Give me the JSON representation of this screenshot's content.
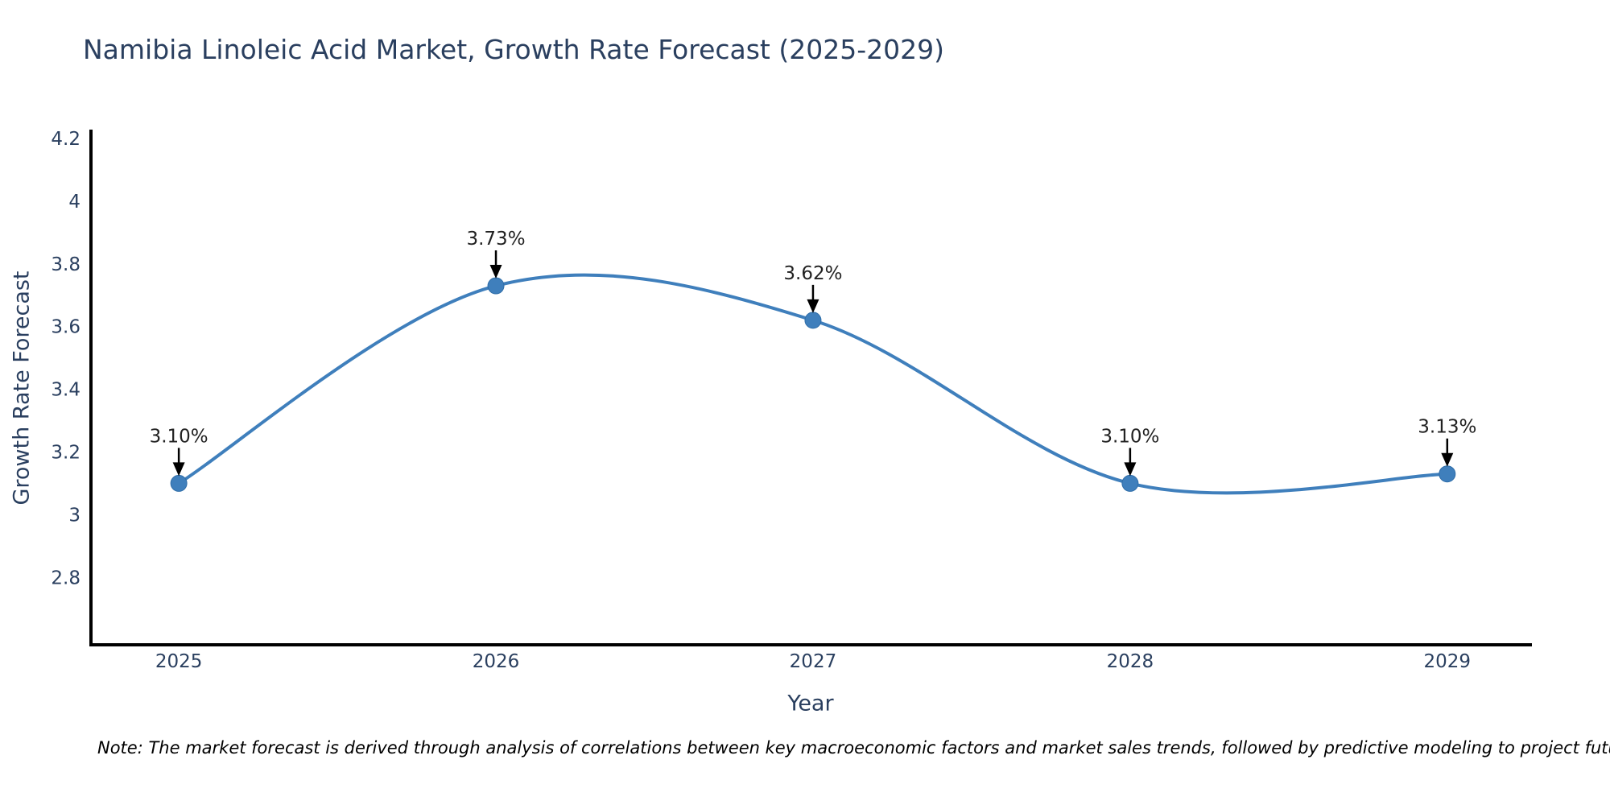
{
  "note": "Note: The market forecast is derived through analysis of correlations between key macroeconomic factors and market sales trends, followed by predictive modeling to project future sales",
  "colors": {
    "background": "#ffffff",
    "line": "#3f7fbc",
    "marker": "#3f7fbc",
    "marker_edge": "#2f6da8",
    "axis_line": "#000000",
    "title_text": "#2a3f5f",
    "tick_text": "#2a3f5f",
    "annotation_text": "#222222",
    "annotation_arrow": "#000000",
    "note_text": "#000000"
  },
  "chart_data": {
    "type": "line",
    "title": "Namibia Linoleic Acid Market, Growth Rate Forecast (2025-2029)",
    "xlabel": "Year",
    "ylabel": "Growth Rate Forecast",
    "x": [
      2025,
      2026,
      2027,
      2028,
      2029
    ],
    "y": [
      3.1,
      3.73,
      3.62,
      3.1,
      3.13
    ],
    "labels": [
      "3.10%",
      "3.73%",
      "3.62%",
      "3.10%",
      "3.13%"
    ],
    "line_shape": "spline",
    "markers": true,
    "grid": false,
    "legend": false,
    "x_ticks": [
      2025,
      2026,
      2027,
      2028,
      2029
    ],
    "x_tick_labels": [
      "2025",
      "2026",
      "2027",
      "2028",
      "2029"
    ],
    "y_ticks": [
      4.2,
      4,
      3.8,
      3.6,
      3.4,
      3.2,
      3,
      2.8
    ],
    "y_tick_labels": [
      "4.2",
      "4",
      "3.8",
      "3.6",
      "3.4",
      "3.2",
      "3",
      "2.8"
    ],
    "xlim": [
      2024.723,
      2029.262
    ],
    "ylim": [
      2.585,
      4.223
    ]
  }
}
